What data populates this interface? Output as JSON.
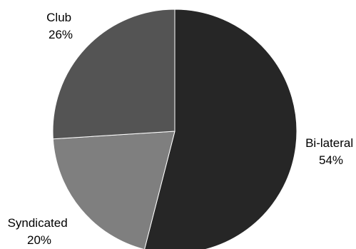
{
  "chart_data": {
    "type": "pie",
    "start_angle_deg": 0,
    "direction": "clockwise",
    "slices": [
      {
        "name": "Bi-lateral",
        "value": 54,
        "label": "54%",
        "color": "#262626"
      },
      {
        "name": "Syndicated",
        "value": 20,
        "label": "20%",
        "color": "#7f7f7f"
      },
      {
        "name": "Club",
        "value": 26,
        "label": "26%",
        "color": "#545454"
      }
    ],
    "legend": "none",
    "edge_color": "#ffffff"
  }
}
